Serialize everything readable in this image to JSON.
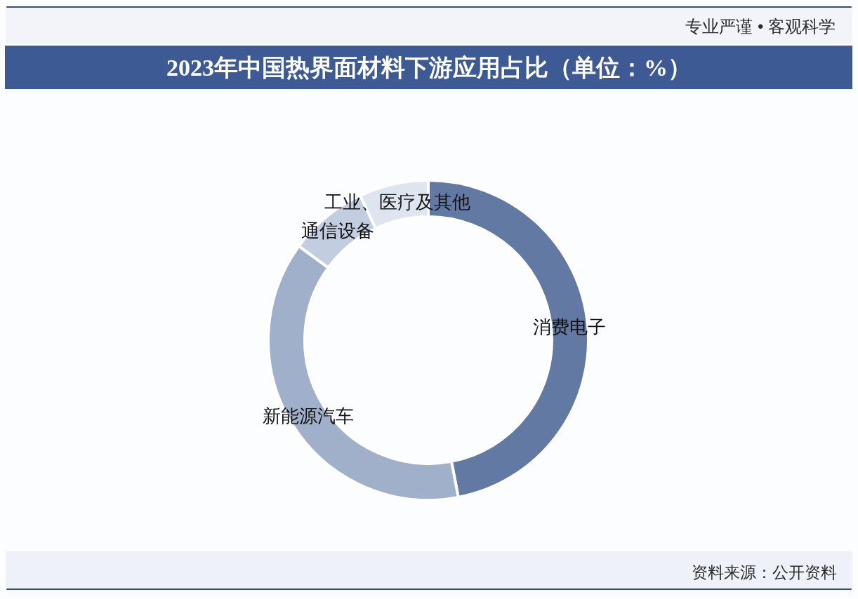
{
  "chart_data": {
    "type": "donut",
    "title": "2023年中国热界面材料下游应用占比（单位：%）",
    "categories": [
      "消费电子",
      "新能源汽车",
      "通信设备",
      "工业、医疗及其他"
    ],
    "values": [
      47,
      38,
      8,
      7
    ],
    "colors": [
      "#627aa3",
      "#a0afca",
      "#c3cde0",
      "#dfe5ef"
    ],
    "annotations": [
      "专业严谨 • 客观科学",
      "资料来源：公开资料"
    ]
  }
}
